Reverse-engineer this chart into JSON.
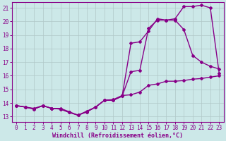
{
  "background_color": "#cce8e8",
  "grid_color": "#b0c8c8",
  "line_color": "#880088",
  "marker": "D",
  "markersize": 2.0,
  "linewidth": 1.0,
  "xlabel": "Windchill (Refroidissement éolien,°C)",
  "xlabel_fontsize": 6,
  "tick_fontsize": 5.5,
  "ylim": [
    12.6,
    21.4
  ],
  "xlim": [
    -0.5,
    23.5
  ],
  "yticks": [
    13,
    14,
    15,
    16,
    17,
    18,
    19,
    20,
    21
  ],
  "xticks": [
    0,
    1,
    2,
    3,
    4,
    5,
    6,
    7,
    8,
    9,
    10,
    11,
    12,
    13,
    14,
    15,
    16,
    17,
    18,
    19,
    20,
    21,
    22,
    23
  ],
  "line1_x": [
    0,
    1,
    2,
    3,
    4,
    5,
    6,
    7,
    8,
    9,
    10,
    11,
    12,
    13,
    14,
    15,
    16,
    17,
    18,
    19,
    20,
    21,
    22,
    23
  ],
  "line1_y": [
    13.8,
    13.7,
    13.55,
    13.8,
    13.6,
    13.55,
    13.3,
    13.1,
    13.35,
    13.7,
    14.2,
    14.2,
    14.5,
    18.4,
    18.5,
    19.3,
    20.2,
    20.1,
    20.1,
    19.4,
    17.5,
    17.0,
    16.7,
    16.5
  ],
  "line2_x": [
    0,
    1,
    2,
    3,
    4,
    5,
    6,
    7,
    8,
    9,
    10,
    11,
    12,
    13,
    14,
    15,
    16,
    17,
    18,
    19,
    20,
    21,
    22,
    23
  ],
  "line2_y": [
    13.8,
    13.7,
    13.55,
    13.8,
    13.6,
    13.55,
    13.3,
    13.1,
    13.35,
    13.7,
    14.2,
    14.2,
    14.5,
    16.3,
    16.4,
    19.5,
    20.1,
    20.1,
    20.2,
    21.1,
    21.1,
    21.2,
    21.0,
    16.2
  ],
  "line3_x": [
    0,
    1,
    2,
    3,
    4,
    5,
    6,
    7,
    8,
    9,
    10,
    11,
    12,
    13,
    14,
    15,
    16,
    17,
    18,
    19,
    20,
    21,
    22,
    23
  ],
  "line3_y": [
    13.8,
    13.7,
    13.6,
    13.8,
    13.6,
    13.6,
    13.35,
    13.1,
    13.4,
    13.7,
    14.2,
    14.25,
    14.55,
    14.6,
    14.8,
    15.3,
    15.4,
    15.6,
    15.6,
    15.65,
    15.75,
    15.8,
    15.9,
    16.0
  ]
}
